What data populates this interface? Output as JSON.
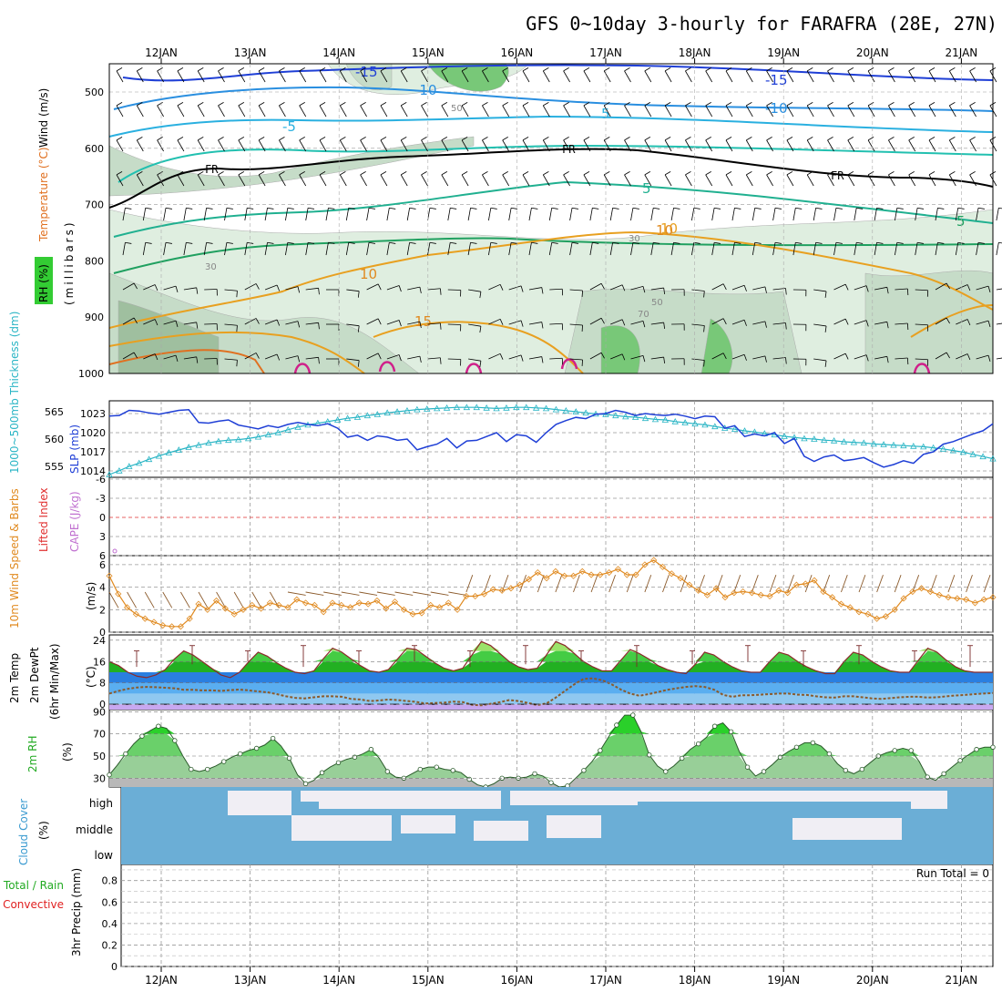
{
  "title": "GFS 0~10day 3-hourly for FARAFRA (28E, 27N)",
  "dates": [
    "12JAN",
    "13JAN",
    "14JAN",
    "15JAN",
    "16JAN",
    "17JAN",
    "18JAN",
    "19JAN",
    "20JAN",
    "21JAN"
  ],
  "colors": {
    "wind": "#1f3fd6",
    "temperature": "#e07020",
    "rh": "#7fd07f",
    "thickness": "#2ab5c5",
    "slp": "#1f3fd6",
    "lifted": "#e03030",
    "cape": "#c070d0",
    "wind10": "#e08a20",
    "dewpt": "#8b5a2b",
    "cloud": "#6baed6",
    "clear": "#f0eef4",
    "precip_total": "#22aa22",
    "precip_conv": "#e02020"
  },
  "panels": {
    "upper": {
      "ylabel_wind": "Wind (m/s)",
      "ylabel_temp": "Temperature (°C)",
      "ylabel_rh": "RH (%)",
      "ylabel_mb": "(millibars)",
      "yticks": [
        "500",
        "600",
        "700",
        "800",
        "900",
        "1000"
      ],
      "contour_labels": {
        "wind": [
          "-15",
          "-10",
          "-5",
          "5",
          "-15",
          "-10",
          "5",
          "10",
          "5"
        ],
        "fr": [
          "FR",
          "FR",
          "FR"
        ],
        "temp": [
          "10",
          "15",
          "10"
        ],
        "rh": [
          "30",
          "50",
          "70",
          "30",
          "50"
        ]
      }
    },
    "thickness": {
      "ylabel_thick": "1000~500mb Thickness (dm)",
      "ylabel_slp": "SLP (mb)",
      "yticks_thick": [
        "565",
        "560",
        "555"
      ],
      "yticks_slp": [
        "1023",
        "1020",
        "1017",
        "1014"
      ]
    },
    "lifted": {
      "ylabel_li": "Lifted Index",
      "ylabel_cape": "CAPE (J/kg)",
      "yticks": [
        "-6",
        "-3",
        "0",
        "3",
        "6"
      ]
    },
    "wind10": {
      "ylabel": "10m Wind Speed & Barbs",
      "unit": "(m/s)",
      "yticks": [
        "6",
        "4",
        "2",
        "0"
      ]
    },
    "temp2m": {
      "ylabel1": "2m Temp",
      "ylabel2": "2m DewPt",
      "ylabel3": "(6hr Min/Max)",
      "unit": "(°C)",
      "yticks": [
        "24",
        "16",
        "8",
        "0"
      ]
    },
    "rh2m": {
      "ylabel": "2m RH",
      "unit": "(%)",
      "yticks": [
        "90",
        "70",
        "50",
        "30"
      ]
    },
    "cloud": {
      "ylabel": "Cloud Cover",
      "unit": "(%)",
      "levels": [
        "high",
        "middle",
        "low"
      ]
    },
    "precip": {
      "ylabel_total": "Total / Rain",
      "ylabel_conv": "Convective",
      "ylabel": "3hr Precip (mm)",
      "run_total": "Run Total = 0",
      "yticks": [
        "0.8",
        "0.6",
        "0.4",
        "0.2",
        "0"
      ]
    }
  },
  "chart_data": [
    {
      "type": "line",
      "title": "1000~500mb Thickness (dm) / SLP (mb)",
      "x_step_hours": 3,
      "series": [
        {
          "name": "SLP (mb)",
          "axis": "right_inner",
          "ylim": [
            1013,
            1025
          ],
          "values": [
            1022.6,
            1022.7,
            1023.5,
            1023.4,
            1023.1,
            1022.9,
            1023.2,
            1023.5,
            1023.6,
            1021.6,
            1021.5,
            1021.8,
            1022.0,
            1021.2,
            1020.9,
            1020.6,
            1021.1,
            1020.8,
            1021.3,
            1021.6,
            1021.3,
            1021.1,
            1021.4,
            1020.7,
            1019.3,
            1019.6,
            1018.8,
            1019.5,
            1019.3,
            1018.8,
            1019.0,
            1017.3,
            1017.8,
            1018.2,
            1019.1,
            1017.6,
            1018.7,
            1018.8,
            1019.4,
            1020.0,
            1018.6,
            1019.7,
            1019.5,
            1018.5,
            1020.0,
            1021.3,
            1021.9,
            1022.4,
            1022.2,
            1022.9,
            1023.0,
            1023.5,
            1023.2,
            1022.7,
            1023.0,
            1022.8,
            1022.7,
            1022.9,
            1022.6,
            1022.2,
            1022.6,
            1022.5,
            1020.7,
            1021.1,
            1019.4,
            1019.8,
            1019.5,
            1020.0,
            1018.3,
            1019.1,
            1016.3,
            1015.5,
            1016.2,
            1016.5,
            1015.6,
            1015.8,
            1016.1,
            1015.3,
            1014.6,
            1015.0,
            1015.6,
            1015.2,
            1016.6,
            1017.0,
            1018.2,
            1018.6,
            1019.2,
            1019.8,
            1020.3,
            1021.4
          ]
        },
        {
          "name": "1000~500mb Thickness (dm)",
          "axis": "left",
          "ylim": [
            553,
            567
          ],
          "values": [
            553.5,
            554.2,
            555.0,
            555.6,
            556.3,
            556.9,
            557.5,
            558.0,
            558.5,
            558.9,
            559.3,
            559.6,
            559.8,
            559.9,
            560.1,
            560.4,
            560.8,
            561.2,
            561.7,
            562.2,
            562.6,
            562.9,
            563.2,
            563.5,
            563.8,
            564.0,
            564.3,
            564.5,
            564.8,
            565.0,
            565.2,
            565.4,
            565.5,
            565.6,
            565.7,
            565.8,
            565.8,
            565.8,
            565.7,
            565.6,
            565.7,
            565.8,
            565.8,
            565.7,
            565.6,
            565.4,
            565.2,
            565.0,
            564.8,
            564.6,
            564.5,
            564.3,
            564.1,
            564.0,
            563.8,
            563.6,
            563.5,
            563.2,
            563.0,
            562.8,
            562.6,
            562.3,
            562.0,
            561.8,
            561.5,
            561.3,
            561.0,
            560.8,
            560.5,
            560.3,
            560.1,
            560.0,
            559.8,
            559.7,
            559.5,
            559.4,
            559.3,
            559.1,
            559.0,
            558.9,
            558.8,
            558.7,
            558.6,
            558.4,
            558.2,
            557.9,
            557.6,
            557.2,
            556.8,
            556.4
          ]
        }
      ]
    },
    {
      "type": "line",
      "title": "10m Wind Speed (m/s)",
      "ylim": [
        0,
        6.8
      ],
      "x_step_hours": 3,
      "series": [
        {
          "name": "Speed",
          "values": [
            5.0,
            3.4,
            2.2,
            1.6,
            1.2,
            0.9,
            0.6,
            0.5,
            0.5,
            1.2,
            2.5,
            2.0,
            2.8,
            2.1,
            1.6,
            2.0,
            2.4,
            2.1,
            2.6,
            2.4,
            2.2,
            2.9,
            2.6,
            2.4,
            1.8,
            2.6,
            2.4,
            2.2,
            2.6,
            2.5,
            2.8,
            2.1,
            2.7,
            2.0,
            1.6,
            1.7,
            2.4,
            2.2,
            2.6,
            2.0,
            3.2,
            3.2,
            3.4,
            3.8,
            3.7,
            3.9,
            4.2,
            4.7,
            5.3,
            4.8,
            5.4,
            5.0,
            5.0,
            5.4,
            5.1,
            5.1,
            5.3,
            5.6,
            5.1,
            5.1,
            6.0,
            6.4,
            5.8,
            5.2,
            4.8,
            4.2,
            3.7,
            3.3,
            3.9,
            3.1,
            3.5,
            3.6,
            3.5,
            3.3,
            3.2,
            3.7,
            3.5,
            4.2,
            4.3,
            4.6,
            3.6,
            3.1,
            2.5,
            2.2,
            1.8,
            1.6,
            1.2,
            1.4,
            2.0,
            3.0,
            3.6,
            3.9,
            3.6,
            3.3,
            3.1,
            3.0,
            2.9,
            2.6,
            2.9,
            3.1
          ]
        }
      ]
    },
    {
      "type": "area",
      "title": "2m Temp / 2m DewPt (°C)",
      "ylim": [
        -2,
        26
      ],
      "x_step_hours": 3,
      "series": [
        {
          "name": "2m Temp",
          "values": [
            16,
            14.5,
            12,
            10.5,
            10,
            11,
            13,
            17,
            20,
            18.5,
            16,
            13.5,
            11,
            10,
            12,
            16,
            19.5,
            18,
            15.5,
            13.5,
            12,
            11.5,
            12.5,
            17,
            21,
            19.5,
            17,
            14.5,
            12.5,
            12,
            13,
            17,
            21,
            20.5,
            18,
            15.5,
            13.5,
            12.5,
            13.5,
            18.5,
            23.5,
            22,
            19,
            16,
            14,
            13,
            13.5,
            18.5,
            23.5,
            22,
            19,
            16,
            14,
            12.5,
            12.5,
            16.5,
            20.5,
            19,
            17,
            14.5,
            13,
            12,
            11.5,
            15,
            19.5,
            18.5,
            16,
            14,
            12.5,
            12,
            12,
            16,
            19.5,
            18.5,
            16,
            14,
            12.5,
            11.5,
            11.5,
            16,
            19.5,
            18.5,
            16,
            14,
            12.5,
            12,
            12,
            16.5,
            21,
            19.5,
            16.5,
            14,
            12.5,
            12,
            12,
            12
          ]
        },
        {
          "name": "2m DewPt",
          "values": [
            4,
            5,
            5.8,
            6.3,
            6.5,
            6.4,
            6.2,
            6,
            5.4,
            5.4,
            5.2,
            5.2,
            5,
            5.3,
            5.5,
            5.2,
            4.8,
            4.5,
            3.8,
            3,
            2.4,
            2.2,
            2.6,
            3,
            3,
            2.8,
            2,
            1.8,
            1.2,
            1.4,
            1.8,
            1.6,
            1.2,
            0.9,
            0.3,
            0.5,
            0.6,
            1,
            0.8,
            -0.2,
            -0.4,
            0.2,
            0.8,
            1.6,
            1.2,
            0.5,
            -0.3,
            0.3,
            2.5,
            5,
            7.5,
            9.5,
            9.7,
            9,
            7.5,
            5.5,
            4,
            3.2,
            3.8,
            4.6,
            5.4,
            6,
            6.5,
            6.8,
            6.5,
            5.5,
            3.5,
            2.8,
            3.4,
            3.4,
            3.6,
            3.8,
            4,
            4,
            3.6,
            3.5,
            3,
            2.6,
            2.5,
            3,
            3,
            2.6,
            2.2,
            2,
            2.3,
            2.6,
            2.8,
            2.8,
            2.5,
            2.6,
            3,
            3.3,
            3.5,
            3.8,
            4,
            4.2
          ]
        }
      ]
    },
    {
      "type": "area",
      "title": "2m RH (%)",
      "ylim": [
        22,
        92
      ],
      "x_step_hours": 3,
      "series": [
        {
          "name": "2m RH",
          "values": [
            33,
            42,
            52,
            61,
            68,
            73,
            77,
            75,
            64,
            50,
            38,
            36,
            38,
            41,
            45,
            49,
            52,
            55,
            57,
            60,
            66,
            59,
            48,
            33,
            25,
            28,
            35,
            40,
            44,
            47,
            49,
            52,
            56,
            48,
            36,
            31,
            30,
            34,
            38,
            40,
            40,
            38,
            37,
            35,
            29,
            24,
            22,
            25,
            30,
            31,
            30,
            31,
            34,
            32,
            26,
            22,
            23,
            30,
            37,
            45,
            55,
            67,
            78,
            87,
            87,
            72,
            51,
            41,
            36,
            41,
            48,
            56,
            61,
            67,
            77,
            80,
            72,
            54,
            40,
            32,
            36,
            42,
            49,
            54,
            58,
            62,
            62,
            59,
            52,
            43,
            37,
            34,
            38,
            44,
            50,
            53,
            55,
            57,
            55,
            45,
            31,
            28,
            34,
            40,
            46,
            51,
            56,
            58,
            58
          ]
        }
      ]
    }
  ]
}
